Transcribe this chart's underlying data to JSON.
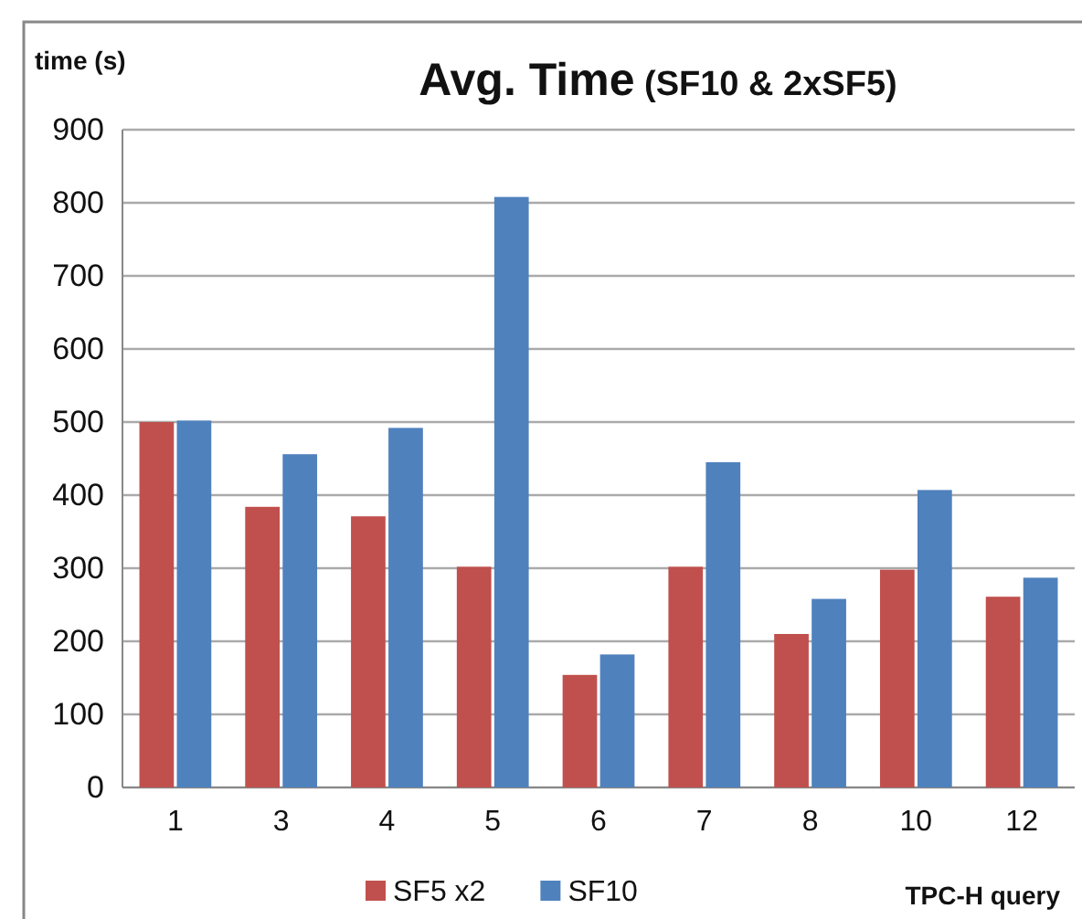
{
  "chart_data": {
    "type": "bar",
    "title": "Avg. Time",
    "subtitle": "(SF10 & 2xSF5)",
    "xlabel": "TPC-H query",
    "ylabel": "time (s)",
    "categories": [
      "1",
      "3",
      "4",
      "5",
      "6",
      "7",
      "8",
      "10",
      "12"
    ],
    "series": [
      {
        "name": "SF5 x2",
        "color": "#c0504d",
        "values": [
          500,
          384,
          371,
          302,
          154,
          302,
          210,
          298,
          261
        ]
      },
      {
        "name": "SF10",
        "color": "#4f81bd",
        "values": [
          502,
          456,
          492,
          808,
          182,
          445,
          258,
          407,
          287
        ]
      }
    ],
    "ylim": [
      0,
      900
    ],
    "yticks": [
      0,
      100,
      200,
      300,
      400,
      500,
      600,
      700,
      800,
      900
    ],
    "grid": "y",
    "legend": "bottom"
  }
}
